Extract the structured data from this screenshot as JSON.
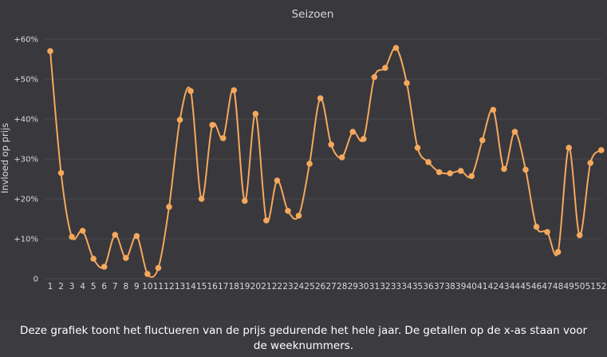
{
  "caption": "Deze grafiek toont het fluctueren van de prijs gedurende het hele jaar. De getallen op de x-as staan voor de weeknummers.",
  "colors": {
    "background": "#39383d",
    "grid": "#4b4a50",
    "line": "#f5a85c",
    "text": "#d8d8d8"
  },
  "chart_data": {
    "type": "line",
    "title": "Seizoen",
    "xlabel": "",
    "ylabel": "Invloed op prijs",
    "ylim": [
      0,
      60
    ],
    "yticks": [
      0,
      10,
      20,
      30,
      40,
      50,
      60
    ],
    "ytick_labels": [
      "0",
      "+10%",
      "+20%",
      "+30%",
      "+40%",
      "+50%",
      "+60%"
    ],
    "grid": "horizontal",
    "smooth": true,
    "categories": [
      "1",
      "2",
      "3",
      "4",
      "5",
      "6",
      "7",
      "8",
      "9",
      "10",
      "11",
      "12",
      "13",
      "14",
      "15",
      "16",
      "17",
      "18",
      "19",
      "20",
      "21",
      "22",
      "23",
      "24",
      "25",
      "26",
      "27",
      "28",
      "29",
      "30",
      "31",
      "32",
      "33",
      "34",
      "35",
      "36",
      "37",
      "38",
      "39",
      "40",
      "41",
      "42",
      "43",
      "44",
      "45",
      "46",
      "47",
      "48",
      "49",
      "50",
      "51",
      "52"
    ],
    "series": [
      {
        "values": [
          57,
          26.5,
          10.5,
          12,
          5,
          3,
          11,
          5.2,
          10.7,
          1.2,
          2.7,
          18,
          39.8,
          47,
          20,
          38.5,
          35.2,
          47.2,
          19.5,
          41.3,
          14.6,
          24.6,
          17,
          15.8,
          28.8,
          45.2,
          33.6,
          30.4,
          36.8,
          35,
          50.5,
          52.8,
          57.8,
          49,
          32.8,
          29.2,
          26.7,
          26.4,
          27,
          25.7,
          34.7,
          42.3,
          27.5,
          36.8,
          27.3,
          13,
          11.7,
          6.7,
          32.8,
          10.9,
          29,
          32.2
        ]
      }
    ]
  }
}
